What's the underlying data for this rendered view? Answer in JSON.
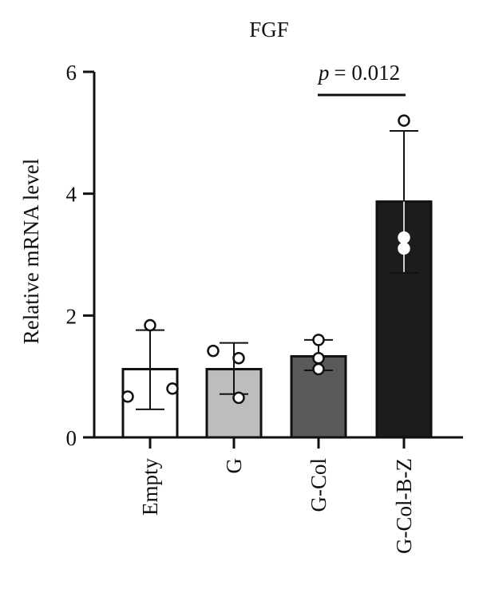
{
  "chart_data": {
    "type": "bar",
    "title": "FGF",
    "xlabel": "",
    "ylabel": "Relative mRNA level",
    "ylim": [
      0,
      6
    ],
    "yticks": [
      0,
      2,
      4,
      6
    ],
    "categories": [
      "Empty",
      "G",
      "G-Col",
      "G-Col-B-Z"
    ],
    "values": [
      1.12,
      1.12,
      1.33,
      3.87
    ],
    "error_upper": [
      1.76,
      1.55,
      1.6,
      5.03
    ],
    "error_lower": [
      0.46,
      0.71,
      1.1,
      2.7
    ],
    "points": [
      [
        1.84,
        0.67,
        0.8
      ],
      [
        1.42,
        1.3,
        0.65
      ],
      [
        1.6,
        1.3,
        1.12
      ],
      [
        5.2,
        3.28,
        3.1
      ]
    ],
    "bar_colors": [
      "#ffffff",
      "#bdbdbd",
      "#5a5a5a",
      "#1c1c1c"
    ],
    "significance": {
      "from": "G-Col",
      "to": "G-Col-B-Z",
      "p_symbol": "p",
      "p_value_text": "= 0.012"
    },
    "grid": false,
    "legend": "none"
  }
}
